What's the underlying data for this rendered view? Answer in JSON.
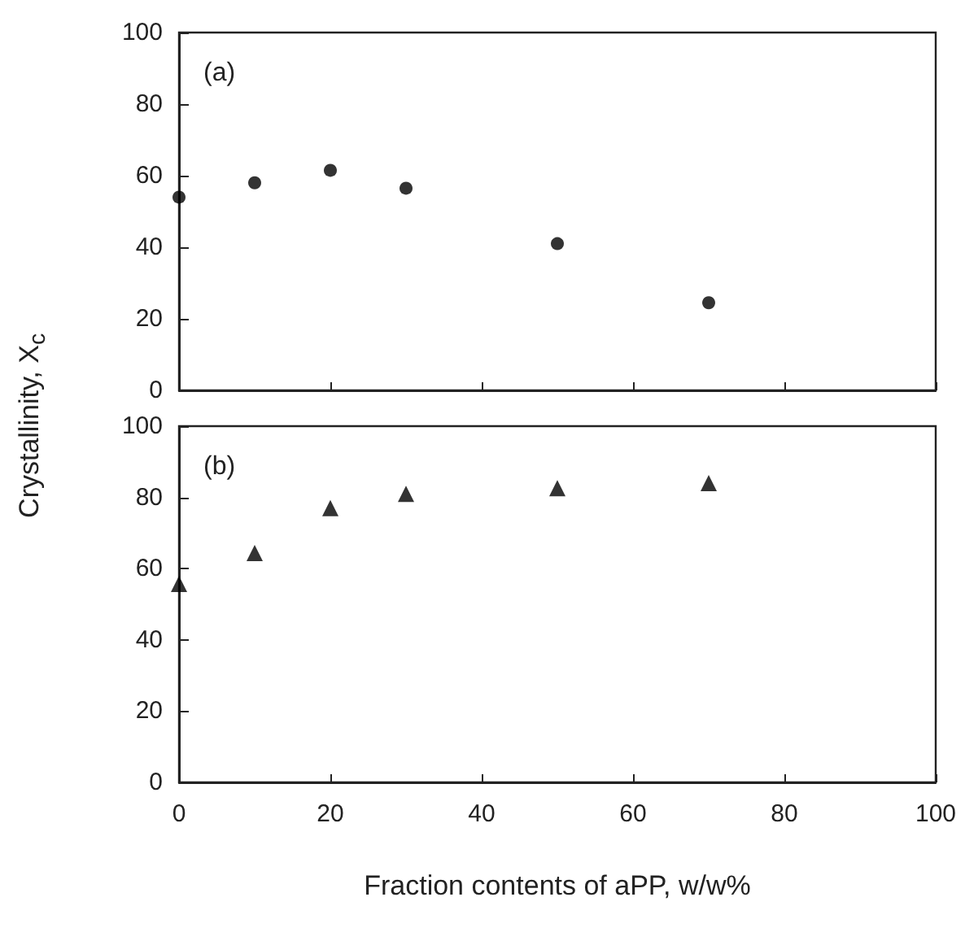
{
  "chart_data": [
    {
      "type": "scatter",
      "title": "(a)",
      "ylabel": "Crystallinity, X$_{c}$",
      "x": [
        0,
        10,
        20,
        30,
        50,
        70
      ],
      "series": [
        {
          "color": "#000000",
          "values": [
            54,
            58,
            61.5,
            56.5,
            41,
            24.5
          ]
        }
      ],
      "marker": "circle",
      "xlim": [
        0,
        100
      ],
      "xticks": [
        0,
        20,
        40,
        60,
        80,
        100
      ],
      "ylim": [
        0,
        100
      ],
      "yticks": [
        0,
        20,
        40,
        60,
        80,
        100
      ],
      "tick_labels": "y",
      "grid": false,
      "legend": false
    },
    {
      "type": "scatter",
      "title": "(b)",
      "xlabel": "Fraction contents of aPP, w/w%",
      "x": [
        0,
        10,
        20,
        30,
        50,
        70
      ],
      "series": [
        {
          "color": "#000000",
          "values": [
            55.7,
            64.4,
            77,
            81,
            82.6,
            84
          ]
        }
      ],
      "marker": "triangle",
      "xlim": [
        0,
        100
      ],
      "xticks": [
        0,
        20,
        40,
        60,
        80,
        100
      ],
      "ylim": [
        0,
        100
      ],
      "yticks": [
        0,
        20,
        40,
        60,
        80,
        100
      ],
      "grid": false,
      "legend": false
    }
  ]
}
